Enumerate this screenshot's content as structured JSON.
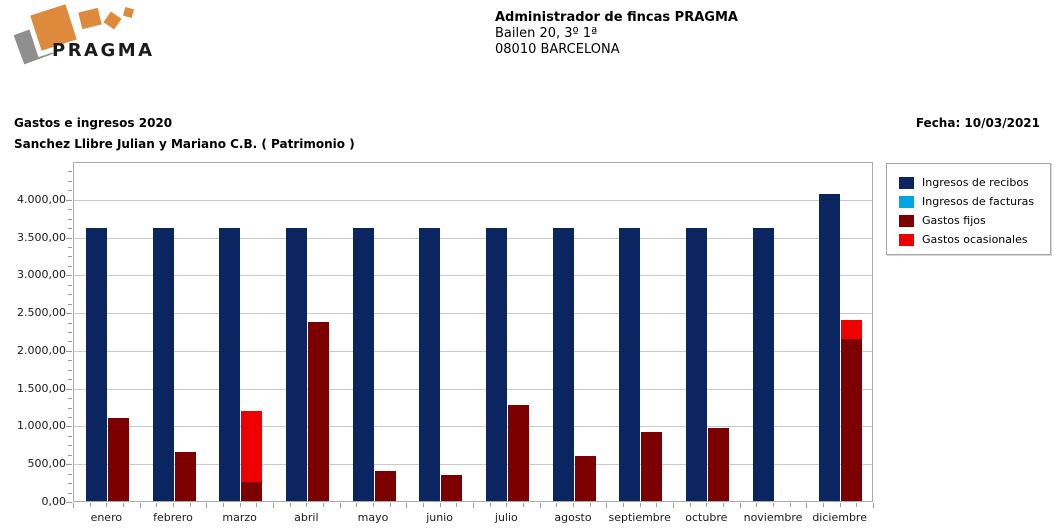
{
  "header": {
    "logo": {
      "brand": "PRAGMA",
      "icon": "pragma-diamonds-icon",
      "accent_color": "#DD8A3D"
    },
    "company_name": "Administrador de fincas PRAGMA",
    "company_address": "Bailen 20, 3º 1ª",
    "company_city": "08010 BARCELONA"
  },
  "report": {
    "title": "Gastos e ingresos 2020",
    "subtitle": "Sanchez Llibre Julian y Mariano C.B. ( Patrimonio )",
    "date": "Fecha: 10/03/2021"
  },
  "chart_data": {
    "type": "bar",
    "title": "Gastos e ingresos 2020",
    "bar_mode": "grouped-stacked",
    "grid": "horizontal-major",
    "legend_position": "top-right",
    "categories": [
      "enero",
      "febrero",
      "marzo",
      "abril",
      "mayo",
      "junio",
      "julio",
      "agosto",
      "septiembre",
      "octubre",
      "noviembre",
      "diciembre"
    ],
    "series": [
      {
        "name": "Ingresos de recibos",
        "color": "#0A2560",
        "stack": "ingresos",
        "values": [
          3620,
          3620,
          3620,
          3620,
          3620,
          3620,
          3620,
          3620,
          3620,
          3620,
          3620,
          4070
        ]
      },
      {
        "name": "Ingresos de facturas",
        "color": "#00A5E3",
        "stack": "ingresos",
        "values": [
          0,
          0,
          0,
          0,
          0,
          0,
          0,
          0,
          0,
          0,
          0,
          0
        ]
      },
      {
        "name": "Gastos fijos",
        "color": "#7D0000",
        "stack": "gastos",
        "values": [
          1100,
          650,
          250,
          2375,
          400,
          350,
          1265,
          600,
          915,
          960,
          0,
          2150
        ]
      },
      {
        "name": "Gastos ocasionales",
        "color": "#EE0000",
        "stack": "gastos",
        "values": [
          0,
          0,
          940,
          0,
          0,
          0,
          0,
          0,
          0,
          0,
          0,
          250
        ]
      }
    ],
    "y_axis": {
      "min": 0,
      "max": 4500,
      "major_step": 500,
      "minor_step": 125,
      "tick_values": [
        0,
        500,
        1000,
        1500,
        2000,
        2500,
        3000,
        3500,
        4000
      ],
      "tick_labels": [
        "0,00",
        "500,00",
        "1.000,00",
        "1.500,00",
        "2.000,00",
        "2.500,00",
        "3.000,00",
        "3.500,00",
        "4.000,00"
      ]
    },
    "xlabel": "",
    "ylabel": ""
  }
}
